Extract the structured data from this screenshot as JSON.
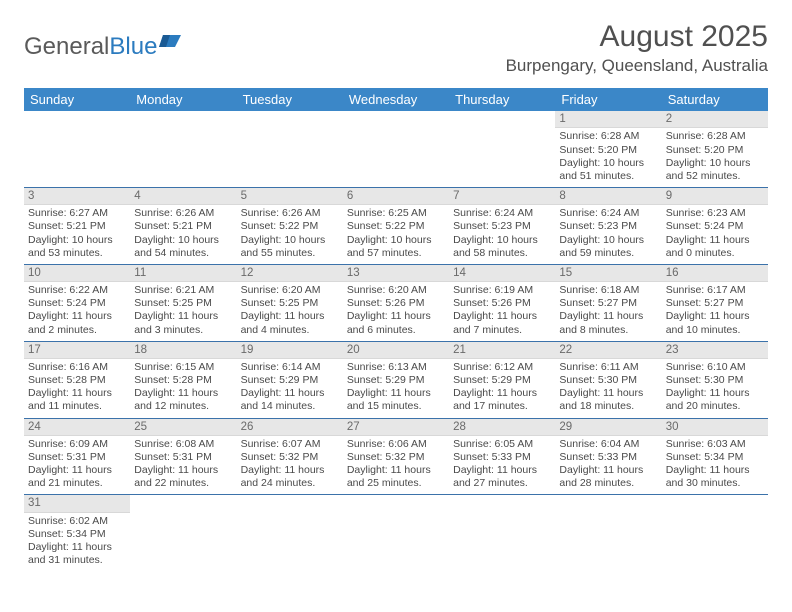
{
  "logo": {
    "text_a": "General",
    "text_b": "Blue"
  },
  "title": "August 2025",
  "location": "Burpengary, Queensland, Australia",
  "colors": {
    "header_bg": "#3b87c8",
    "header_fg": "#ffffff",
    "daynum_bg": "#e7e7e7",
    "row_border": "#3b72aa",
    "text": "#404040"
  },
  "day_headers": [
    "Sunday",
    "Monday",
    "Tuesday",
    "Wednesday",
    "Thursday",
    "Friday",
    "Saturday"
  ],
  "weeks": [
    [
      {
        "n": "",
        "l1": "",
        "l2": "",
        "l3": "",
        "l4": "",
        "empty": true
      },
      {
        "n": "",
        "l1": "",
        "l2": "",
        "l3": "",
        "l4": "",
        "empty": true
      },
      {
        "n": "",
        "l1": "",
        "l2": "",
        "l3": "",
        "l4": "",
        "empty": true
      },
      {
        "n": "",
        "l1": "",
        "l2": "",
        "l3": "",
        "l4": "",
        "empty": true
      },
      {
        "n": "",
        "l1": "",
        "l2": "",
        "l3": "",
        "l4": "",
        "empty": true
      },
      {
        "n": "1",
        "l1": "Sunrise: 6:28 AM",
        "l2": "Sunset: 5:20 PM",
        "l3": "Daylight: 10 hours",
        "l4": "and 51 minutes."
      },
      {
        "n": "2",
        "l1": "Sunrise: 6:28 AM",
        "l2": "Sunset: 5:20 PM",
        "l3": "Daylight: 10 hours",
        "l4": "and 52 minutes."
      }
    ],
    [
      {
        "n": "3",
        "l1": "Sunrise: 6:27 AM",
        "l2": "Sunset: 5:21 PM",
        "l3": "Daylight: 10 hours",
        "l4": "and 53 minutes."
      },
      {
        "n": "4",
        "l1": "Sunrise: 6:26 AM",
        "l2": "Sunset: 5:21 PM",
        "l3": "Daylight: 10 hours",
        "l4": "and 54 minutes."
      },
      {
        "n": "5",
        "l1": "Sunrise: 6:26 AM",
        "l2": "Sunset: 5:22 PM",
        "l3": "Daylight: 10 hours",
        "l4": "and 55 minutes."
      },
      {
        "n": "6",
        "l1": "Sunrise: 6:25 AM",
        "l2": "Sunset: 5:22 PM",
        "l3": "Daylight: 10 hours",
        "l4": "and 57 minutes."
      },
      {
        "n": "7",
        "l1": "Sunrise: 6:24 AM",
        "l2": "Sunset: 5:23 PM",
        "l3": "Daylight: 10 hours",
        "l4": "and 58 minutes."
      },
      {
        "n": "8",
        "l1": "Sunrise: 6:24 AM",
        "l2": "Sunset: 5:23 PM",
        "l3": "Daylight: 10 hours",
        "l4": "and 59 minutes."
      },
      {
        "n": "9",
        "l1": "Sunrise: 6:23 AM",
        "l2": "Sunset: 5:24 PM",
        "l3": "Daylight: 11 hours",
        "l4": "and 0 minutes."
      }
    ],
    [
      {
        "n": "10",
        "l1": "Sunrise: 6:22 AM",
        "l2": "Sunset: 5:24 PM",
        "l3": "Daylight: 11 hours",
        "l4": "and 2 minutes."
      },
      {
        "n": "11",
        "l1": "Sunrise: 6:21 AM",
        "l2": "Sunset: 5:25 PM",
        "l3": "Daylight: 11 hours",
        "l4": "and 3 minutes."
      },
      {
        "n": "12",
        "l1": "Sunrise: 6:20 AM",
        "l2": "Sunset: 5:25 PM",
        "l3": "Daylight: 11 hours",
        "l4": "and 4 minutes."
      },
      {
        "n": "13",
        "l1": "Sunrise: 6:20 AM",
        "l2": "Sunset: 5:26 PM",
        "l3": "Daylight: 11 hours",
        "l4": "and 6 minutes."
      },
      {
        "n": "14",
        "l1": "Sunrise: 6:19 AM",
        "l2": "Sunset: 5:26 PM",
        "l3": "Daylight: 11 hours",
        "l4": "and 7 minutes."
      },
      {
        "n": "15",
        "l1": "Sunrise: 6:18 AM",
        "l2": "Sunset: 5:27 PM",
        "l3": "Daylight: 11 hours",
        "l4": "and 8 minutes."
      },
      {
        "n": "16",
        "l1": "Sunrise: 6:17 AM",
        "l2": "Sunset: 5:27 PM",
        "l3": "Daylight: 11 hours",
        "l4": "and 10 minutes."
      }
    ],
    [
      {
        "n": "17",
        "l1": "Sunrise: 6:16 AM",
        "l2": "Sunset: 5:28 PM",
        "l3": "Daylight: 11 hours",
        "l4": "and 11 minutes."
      },
      {
        "n": "18",
        "l1": "Sunrise: 6:15 AM",
        "l2": "Sunset: 5:28 PM",
        "l3": "Daylight: 11 hours",
        "l4": "and 12 minutes."
      },
      {
        "n": "19",
        "l1": "Sunrise: 6:14 AM",
        "l2": "Sunset: 5:29 PM",
        "l3": "Daylight: 11 hours",
        "l4": "and 14 minutes."
      },
      {
        "n": "20",
        "l1": "Sunrise: 6:13 AM",
        "l2": "Sunset: 5:29 PM",
        "l3": "Daylight: 11 hours",
        "l4": "and 15 minutes."
      },
      {
        "n": "21",
        "l1": "Sunrise: 6:12 AM",
        "l2": "Sunset: 5:29 PM",
        "l3": "Daylight: 11 hours",
        "l4": "and 17 minutes."
      },
      {
        "n": "22",
        "l1": "Sunrise: 6:11 AM",
        "l2": "Sunset: 5:30 PM",
        "l3": "Daylight: 11 hours",
        "l4": "and 18 minutes."
      },
      {
        "n": "23",
        "l1": "Sunrise: 6:10 AM",
        "l2": "Sunset: 5:30 PM",
        "l3": "Daylight: 11 hours",
        "l4": "and 20 minutes."
      }
    ],
    [
      {
        "n": "24",
        "l1": "Sunrise: 6:09 AM",
        "l2": "Sunset: 5:31 PM",
        "l3": "Daylight: 11 hours",
        "l4": "and 21 minutes."
      },
      {
        "n": "25",
        "l1": "Sunrise: 6:08 AM",
        "l2": "Sunset: 5:31 PM",
        "l3": "Daylight: 11 hours",
        "l4": "and 22 minutes."
      },
      {
        "n": "26",
        "l1": "Sunrise: 6:07 AM",
        "l2": "Sunset: 5:32 PM",
        "l3": "Daylight: 11 hours",
        "l4": "and 24 minutes."
      },
      {
        "n": "27",
        "l1": "Sunrise: 6:06 AM",
        "l2": "Sunset: 5:32 PM",
        "l3": "Daylight: 11 hours",
        "l4": "and 25 minutes."
      },
      {
        "n": "28",
        "l1": "Sunrise: 6:05 AM",
        "l2": "Sunset: 5:33 PM",
        "l3": "Daylight: 11 hours",
        "l4": "and 27 minutes."
      },
      {
        "n": "29",
        "l1": "Sunrise: 6:04 AM",
        "l2": "Sunset: 5:33 PM",
        "l3": "Daylight: 11 hours",
        "l4": "and 28 minutes."
      },
      {
        "n": "30",
        "l1": "Sunrise: 6:03 AM",
        "l2": "Sunset: 5:34 PM",
        "l3": "Daylight: 11 hours",
        "l4": "and 30 minutes."
      }
    ],
    [
      {
        "n": "31",
        "l1": "Sunrise: 6:02 AM",
        "l2": "Sunset: 5:34 PM",
        "l3": "Daylight: 11 hours",
        "l4": "and 31 minutes."
      },
      {
        "n": "",
        "l1": "",
        "l2": "",
        "l3": "",
        "l4": "",
        "empty": true
      },
      {
        "n": "",
        "l1": "",
        "l2": "",
        "l3": "",
        "l4": "",
        "empty": true
      },
      {
        "n": "",
        "l1": "",
        "l2": "",
        "l3": "",
        "l4": "",
        "empty": true
      },
      {
        "n": "",
        "l1": "",
        "l2": "",
        "l3": "",
        "l4": "",
        "empty": true
      },
      {
        "n": "",
        "l1": "",
        "l2": "",
        "l3": "",
        "l4": "",
        "empty": true
      },
      {
        "n": "",
        "l1": "",
        "l2": "",
        "l3": "",
        "l4": "",
        "empty": true
      }
    ]
  ]
}
